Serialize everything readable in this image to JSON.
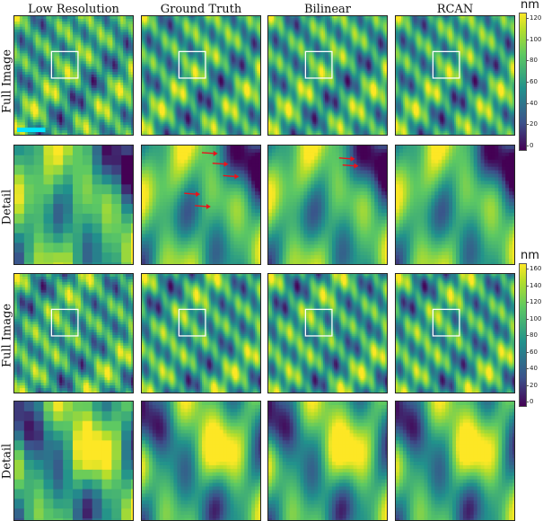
{
  "columns": [
    "Low Resolution",
    "Ground Truth",
    "Bilinear",
    "RCAN"
  ],
  "rows": [
    "Full Image",
    "Detail",
    "Full Image",
    "Detail"
  ],
  "colorbar_top": {
    "unit": "nm",
    "ticks": [
      "120",
      "100",
      "80",
      "60",
      "40",
      "20",
      "0"
    ],
    "range": [
      0,
      130
    ]
  },
  "colorbar_bottom": {
    "unit": "nm",
    "ticks": [
      "160",
      "140",
      "120",
      "100",
      "80",
      "60",
      "40",
      "20",
      "0"
    ],
    "range": [
      0,
      170
    ]
  },
  "colormap": "viridis",
  "colors": {
    "scale_bar": "#00e5ff",
    "inset_box": "#ffffff",
    "arrows": "#e8141c"
  }
}
